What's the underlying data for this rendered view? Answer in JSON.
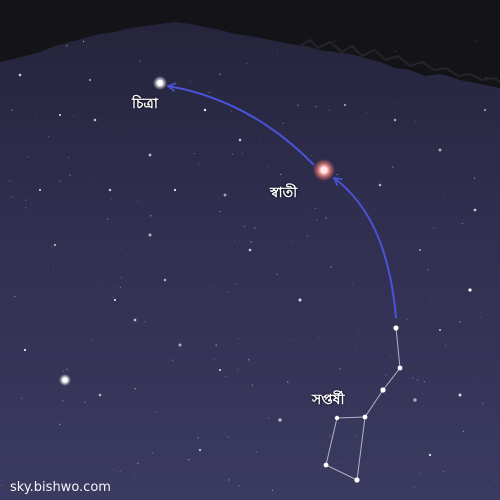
{
  "labels": {
    "chitra": "চিত্রা",
    "swati": "স্বাতী",
    "saptarshi": "সপ্তর্ষী"
  },
  "watermark": "sky.bishwo.com",
  "colors": {
    "sky_top": "#24233a",
    "sky_bottom": "#3b3a60",
    "horizon_silhouette": "#141418",
    "arc_arrow": "#4a52d8",
    "constellation_lines": "#c8c8d8",
    "swati_star": "#ff9a9a",
    "star": "#ffffff"
  }
}
